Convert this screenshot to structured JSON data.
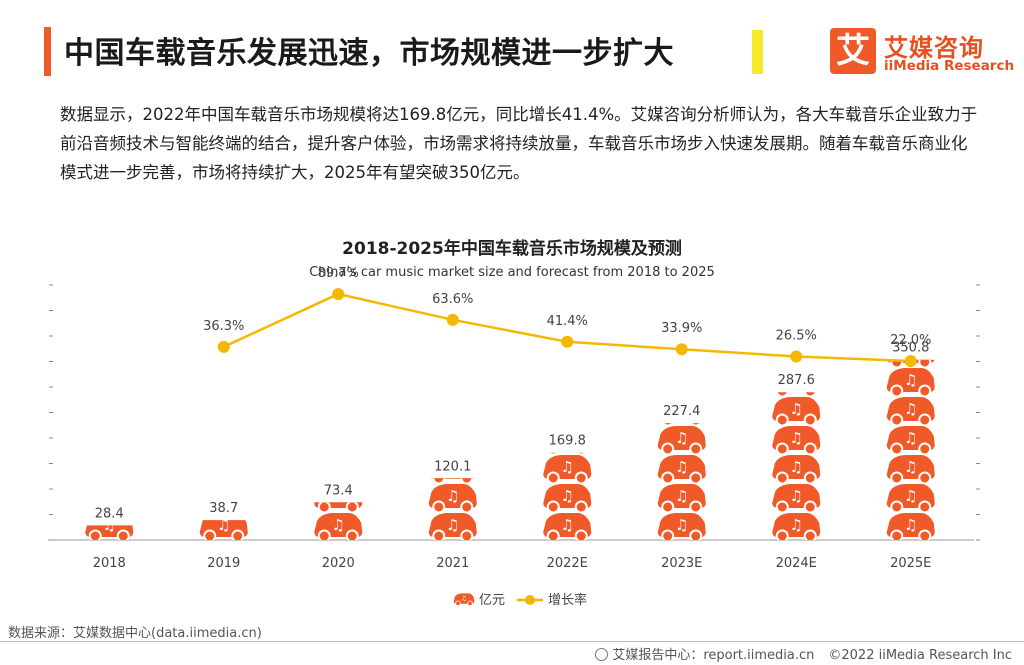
{
  "header": {
    "title": "中国车载音乐发展迅速，市场规模进一步扩大",
    "logo_glyph": "艾",
    "logo_cn": "艾媒咨询",
    "logo_en": "iiMedia Research"
  },
  "intro": {
    "text": "数据显示，2022年中国车载音乐市场规模将达169.8亿元，同比增长41.4%。艾媒咨询分析师认为，各大车载音乐企业致力于前沿音频技术与智能终端的结合，提升客户体验，市场需求将持续放量，车载音乐市场步入快速发展期。随着车载音乐商业化模式进一步完善，市场将持续扩大，2025年有望突破350亿元。"
  },
  "colors": {
    "accent": "#f05a28",
    "bar": "#f05a28",
    "line": "#f5b800",
    "highlight": "#f5ea2a"
  },
  "chart_data": {
    "type": "bar",
    "title": "2018-2025年中国车载音乐市场规模及预测",
    "subtitle": "China's car music market size and forecast from 2018 to 2025",
    "categories": [
      "2018",
      "2019",
      "2020",
      "2021",
      "2022E",
      "2023E",
      "2024E",
      "2025E"
    ],
    "series": [
      {
        "name": "亿元",
        "type": "bar",
        "icon": "car-music-icon",
        "values": [
          28.4,
          38.7,
          73.4,
          120.1,
          169.8,
          227.4,
          287.6,
          350.8
        ]
      },
      {
        "name": "增长率",
        "type": "line",
        "values": [
          null,
          36.3,
          89.7,
          63.6,
          41.4,
          33.9,
          26.5,
          22.0
        ],
        "labels": [
          "",
          "36.3%",
          "89.7%",
          "63.6%",
          "41.4%",
          "33.9%",
          "26.5%",
          "22.0%"
        ]
      }
    ],
    "ylim": [
      0,
      360
    ],
    "y2lim": [
      0,
      100
    ],
    "legend": "bottom-center"
  },
  "footer": {
    "source": "数据来源：艾媒数据中心(data.iimedia.cn)",
    "report": "艾媒报告中心：report.iimedia.cn",
    "copyright": "©2022  iiMedia Research  Inc"
  }
}
